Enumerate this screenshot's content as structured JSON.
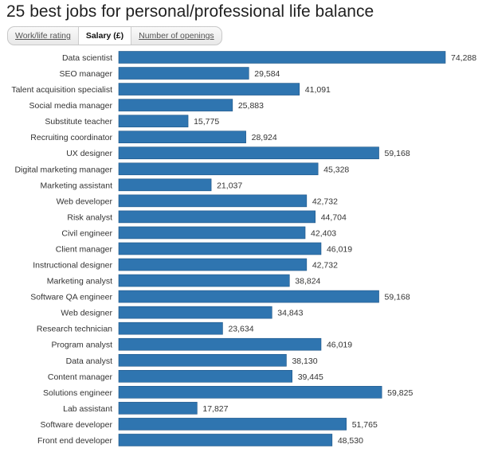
{
  "title": "25 best jobs for personal/professional life balance",
  "tabs": [
    {
      "label": "Work/life rating",
      "active": false
    },
    {
      "label": "Salary (£)",
      "active": true
    },
    {
      "label": "Number of openings",
      "active": false
    }
  ],
  "chart_data": {
    "type": "bar",
    "orientation": "horizontal",
    "title": "25 best jobs for personal/professional life balance",
    "xlabel": "Salary (£)",
    "xlim": [
      0,
      74288
    ],
    "bar_color": "#2f75b0",
    "categories": [
      "Data scientist",
      "SEO manager",
      "Talent acquisition specialist",
      "Social media manager",
      "Substitute teacher",
      "Recruiting coordinator",
      "UX designer",
      "Digital marketing manager",
      "Marketing assistant",
      "Web developer",
      "Risk analyst",
      "Civil engineer",
      "Client manager",
      "Instructional designer",
      "Marketing analyst",
      "Software QA engineer",
      "Web designer",
      "Research technician",
      "Program analyst",
      "Data analyst",
      "Content manager",
      "Solutions engineer",
      "Lab assistant",
      "Software developer",
      "Front end developer"
    ],
    "values": [
      74288,
      29584,
      41091,
      25883,
      15775,
      28924,
      59168,
      45328,
      21037,
      42732,
      44704,
      42403,
      46019,
      42732,
      38824,
      59168,
      34843,
      23634,
      46019,
      38130,
      39445,
      59825,
      17827,
      51765,
      48530
    ],
    "value_labels": [
      "74,288",
      "29,584",
      "41,091",
      "25,883",
      "15,775",
      "28,924",
      "59,168",
      "45,328",
      "21,037",
      "42,732",
      "44,704",
      "42,403",
      "46,019",
      "42,732",
      "38,824",
      "59,168",
      "34,843",
      "23,634",
      "46,019",
      "38,130",
      "39,445",
      "59,825",
      "17,827",
      "51,765",
      "48,530"
    ]
  }
}
